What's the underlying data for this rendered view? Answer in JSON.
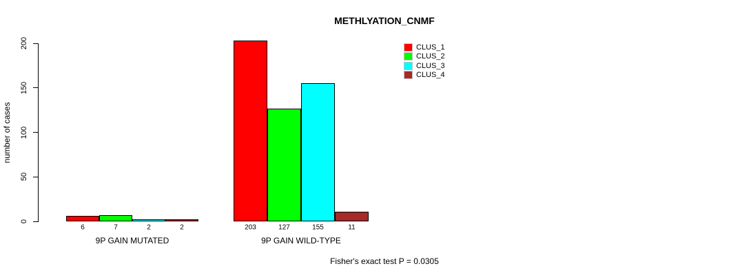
{
  "chart_data": {
    "type": "bar",
    "title": "METHLYATION_CNMF",
    "ylabel": "number of cases",
    "xlabel": "",
    "ylim": [
      0,
      200
    ],
    "yticks": [
      0,
      50,
      100,
      150,
      200
    ],
    "grid": false,
    "legend_position": "top-right",
    "categories": [
      "9P GAIN MUTATED",
      "9P GAIN WILD-TYPE"
    ],
    "series": [
      {
        "name": "CLUS_1",
        "color": "#FF0000",
        "values": [
          6,
          203
        ]
      },
      {
        "name": "CLUS_2",
        "color": "#00FF00",
        "values": [
          7,
          127
        ]
      },
      {
        "name": "CLUS_3",
        "color": "#00FFFF",
        "values": [
          2,
          155
        ]
      },
      {
        "name": "CLUS_4",
        "color": "#A52A2A",
        "values": [
          2,
          11
        ]
      }
    ],
    "bar_value_labels": {
      "9P GAIN MUTATED": [
        6,
        7,
        2,
        2
      ],
      "9P GAIN WILD-TYPE": [
        203,
        127,
        155,
        11
      ]
    },
    "annotation": "Fisher's exact test P = 0.0305"
  },
  "colors": {
    "background": "#FFFFFF",
    "axis": "#000000",
    "clus_1": "#FF0000",
    "clus_2": "#00FF00",
    "clus_3": "#00FFFF",
    "clus_4": "#A52A2A"
  }
}
